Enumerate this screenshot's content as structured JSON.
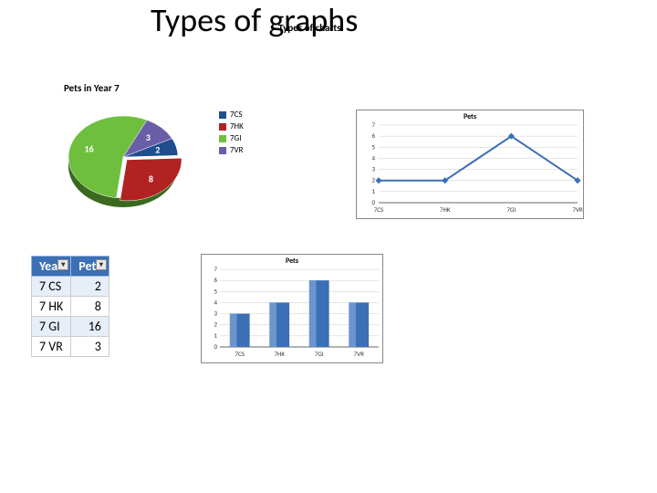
{
  "title": "Types of graphs",
  "subtitle": "Types of charts",
  "pie_chart": {
    "type": "pie",
    "title": "Pets in Year 7",
    "slices": [
      {
        "label": "7CS",
        "value": 2,
        "color": "#1f4e8f"
      },
      {
        "label": "7HK",
        "value": 8,
        "color": "#b22222"
      },
      {
        "label": "7GI",
        "value": 16,
        "color": "#6fbf3f"
      },
      {
        "label": "7VR",
        "value": 3,
        "color": "#6b5ea8"
      }
    ],
    "label_fontsize": 10,
    "label_color": "#ffffff",
    "background_color": "#ffffff",
    "legend_position": "right"
  },
  "line_chart": {
    "type": "line",
    "title": "Pets",
    "categories": [
      "7CS",
      "7HK",
      "7GI",
      "7VR"
    ],
    "values": [
      2,
      2,
      6,
      2
    ],
    "ylim": [
      0,
      7
    ],
    "ytick_step": 1,
    "line_color": "#3b6fb6",
    "line_width": 2,
    "marker_style": "diamond",
    "marker_size": 5,
    "marker_color": "#3b6fb6",
    "grid_color": "#cccccc",
    "background_color": "#ffffff",
    "axis_fontsize": 7,
    "border_color": "#888888"
  },
  "table": {
    "type": "table",
    "columns": [
      "Year",
      "Pets"
    ],
    "rows": [
      [
        "7 CS",
        "2"
      ],
      [
        "7 HK",
        "8"
      ],
      [
        "7 GI",
        "16"
      ],
      [
        "7 VR",
        "3"
      ]
    ],
    "header_bg": "#3b6fb6",
    "header_fg": "#ffffff",
    "row_alt_bg": "#e6eef8",
    "border_color": "#cccccc",
    "fontsize": 14
  },
  "bar_chart": {
    "type": "bar",
    "title": "Pets",
    "categories": [
      "7CS",
      "7HK",
      "7GI",
      "7VR"
    ],
    "values": [
      3,
      4,
      6,
      4
    ],
    "ylim": [
      0,
      7
    ],
    "ytick_step": 1,
    "bar_color": "#3b6fb6",
    "bar_width": 0.5,
    "grid_color": "#cccccc",
    "background_color": "#ffffff",
    "axis_fontsize": 7,
    "border_color": "#888888"
  }
}
